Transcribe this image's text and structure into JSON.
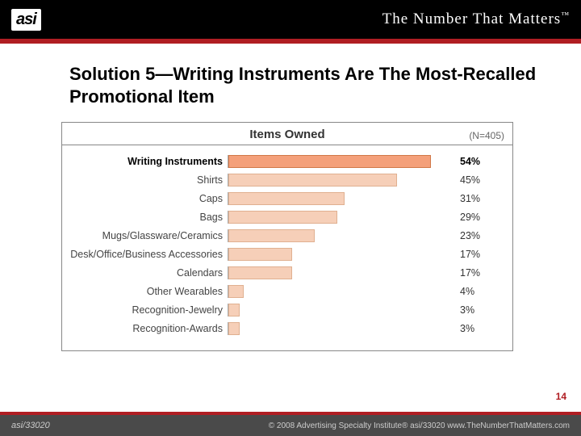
{
  "header": {
    "logo_text": "asi",
    "tagline": "The Number That Matters",
    "tagline_tm": "™"
  },
  "title": "Solution 5—Writing Instruments Are The Most-Recalled Promotional Item",
  "chart": {
    "type": "bar",
    "title": "Items Owned",
    "n_label": "(N=405)",
    "max_value": 60,
    "bar_color_highlight": "#f4a07a",
    "bar_color_normal": "#f6cfb8",
    "border_color": "#888888",
    "background_color": "#ffffff",
    "label_fontsize": 12.5,
    "title_fontsize": 15,
    "rows": [
      {
        "label": "Writing Instruments",
        "value": 54,
        "display": "54%",
        "highlight": true
      },
      {
        "label": "Shirts",
        "value": 45,
        "display": "45%",
        "highlight": false
      },
      {
        "label": "Caps",
        "value": 31,
        "display": "31%",
        "highlight": false
      },
      {
        "label": "Bags",
        "value": 29,
        "display": "29%",
        "highlight": false
      },
      {
        "label": "Mugs/Glassware/Ceramics",
        "value": 23,
        "display": "23%",
        "highlight": false
      },
      {
        "label": "Desk/Office/Business Accessories",
        "value": 17,
        "display": "17%",
        "highlight": false
      },
      {
        "label": "Calendars",
        "value": 17,
        "display": "17%",
        "highlight": false
      },
      {
        "label": "Other Wearables",
        "value": 4,
        "display": "4%",
        "highlight": false
      },
      {
        "label": "Recognition-Jewelry",
        "value": 3,
        "display": "3%",
        "highlight": false
      },
      {
        "label": "Recognition-Awards",
        "value": 3,
        "display": "3%",
        "highlight": false
      }
    ]
  },
  "page_number": "14",
  "footer": {
    "left": "asi/33020",
    "right": "© 2008 Advertising Specialty Institute® asi/33020   www.TheNumberThatMatters.com"
  },
  "colors": {
    "header_bg": "#000000",
    "accent_red": "#b01e23",
    "footer_bg": "#4a4a4a"
  }
}
